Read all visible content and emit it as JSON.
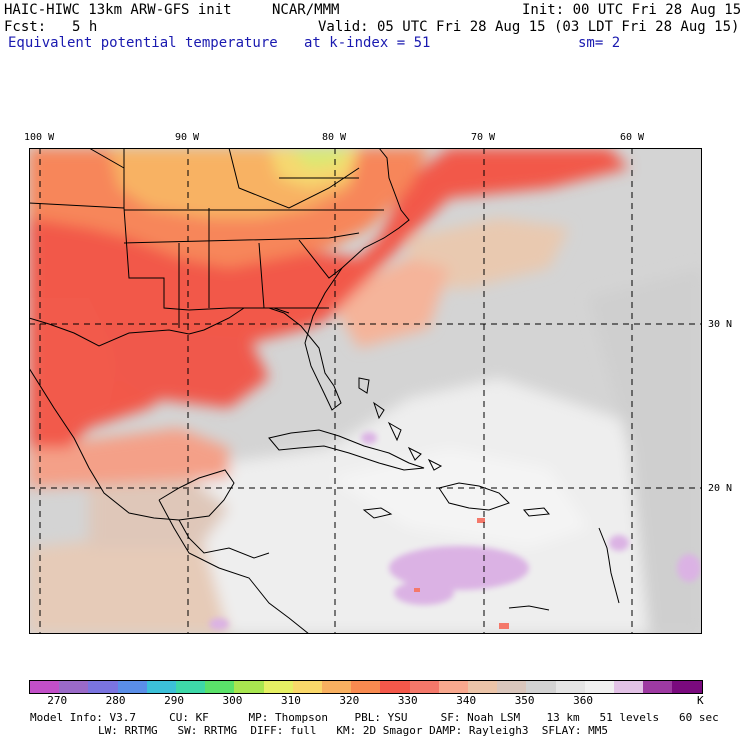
{
  "header": {
    "model": "HAIC-HIWC 13km ARW-GFS init",
    "org": "NCAR/MMM",
    "init": "Init: 00 UTC Fri 28 Aug 15",
    "fcst_label": "Fcst:",
    "fcst_value": "5 h",
    "valid": "Valid: 05 UTC Fri 28 Aug 15 (03 LDT Fri 28 Aug 15)",
    "field": "Equivalent potential temperature",
    "kindex": "at k-index = 51",
    "sm": "sm= 2"
  },
  "map": {
    "lon_labels": [
      "100 W",
      "90 W",
      "80 W",
      "70 W",
      "60 W"
    ],
    "lat_labels": [
      "30 N",
      "20 N"
    ]
  },
  "colorbar": {
    "unit": "K",
    "ticks": [
      "270",
      "280",
      "290",
      "300",
      "310",
      "320",
      "330",
      "340",
      "350",
      "360"
    ],
    "colors": [
      "#c24fc8",
      "#9a6ac8",
      "#7a74e0",
      "#5a8ee8",
      "#3cc0d8",
      "#3ed8a8",
      "#5ae26a",
      "#a8e650",
      "#e6f064",
      "#fad86a",
      "#f8b060",
      "#f88a50",
      "#f4584a",
      "#f4786a",
      "#f8a88e",
      "#ebc4a8",
      "#d9c6bc",
      "#d2d2d2",
      "#e4e4e4",
      "#f0f0f0",
      "#e2c2e6",
      "#9e3aa2",
      "#7a0a7e"
    ]
  },
  "footer": {
    "line1": "Model Info: V3.7     CU: KF      MP: Thompson    PBL: YSU     SF: Noah LSM    13 km   51 levels   60 sec",
    "line2": "LW: RRTMG   SW: RRTMG  DIFF: full   KM: 2D Smagor DAMP: Rayleigh3  SFLAY: MM5"
  }
}
